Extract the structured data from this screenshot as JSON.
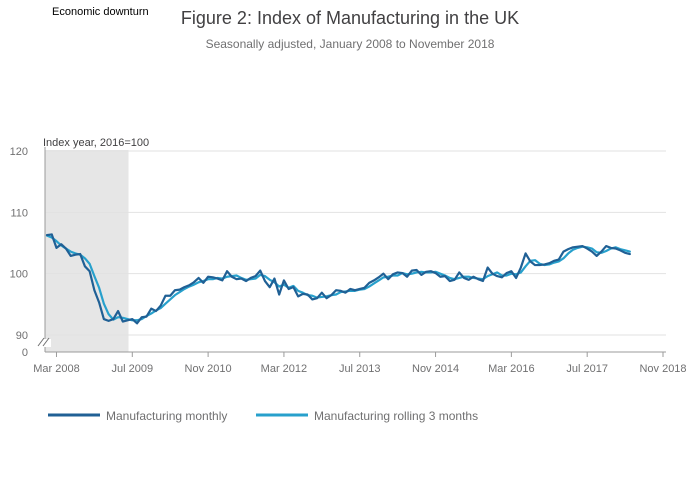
{
  "chart_data": {
    "type": "line",
    "title": "Figure 2: Index of Manufacturing in the UK",
    "subtitle": "Seasonally adjusted, January 2008 to November 2018",
    "ylabel": "Index year, 2016=100",
    "xlabel": "",
    "ylim": [
      90,
      120
    ],
    "y_ticks": [
      90,
      100,
      110,
      120
    ],
    "y_zero_label": "0",
    "x_ticks": [
      {
        "label": "Mar 2008",
        "index": 2
      },
      {
        "label": "Jul 2009",
        "index": 18
      },
      {
        "label": "Nov 2010",
        "index": 34
      },
      {
        "label": "Mar 2012",
        "index": 50
      },
      {
        "label": "Jul 2013",
        "index": 66
      },
      {
        "label": "Nov 2014",
        "index": 82
      },
      {
        "label": "Mar 2016",
        "index": 98
      },
      {
        "label": "Jul 2017",
        "index": 114
      },
      {
        "label": "Nov 2018",
        "index": 130
      }
    ],
    "x_start": "Jan 2008",
    "x_end": "Nov 2018",
    "shaded_region": {
      "label": "Economic downturn",
      "start_index": 0,
      "end_index": 17
    },
    "grid": true,
    "legend_position": "bottom",
    "series": [
      {
        "name": "Manufacturing monthly",
        "color": "#206095",
        "values": [
          106.3,
          106.4,
          104.2,
          104.8,
          104.1,
          102.9,
          103.1,
          103.2,
          101.2,
          100.4,
          97.3,
          95.3,
          92.6,
          92.3,
          92.6,
          93.9,
          92.2,
          92.4,
          92.6,
          91.9,
          92.9,
          93.0,
          94.3,
          93.9,
          94.8,
          96.4,
          96.4,
          97.3,
          97.4,
          97.8,
          98.1,
          98.6,
          99.3,
          98.5,
          99.5,
          99.4,
          99.2,
          98.9,
          100.4,
          99.5,
          99.1,
          99.2,
          98.8,
          99.3,
          99.6,
          100.5,
          98.8,
          97.8,
          99.2,
          96.6,
          98.9,
          97.5,
          97.8,
          96.3,
          96.7,
          96.6,
          95.8,
          96.0,
          96.9,
          96.0,
          96.5,
          97.3,
          97.2,
          96.9,
          97.5,
          97.3,
          97.5,
          97.7,
          98.5,
          98.9,
          99.4,
          100.0,
          99.1,
          99.9,
          100.2,
          100.1,
          99.5,
          100.5,
          100.6,
          99.8,
          100.3,
          100.4,
          100.1,
          99.5,
          99.6,
          98.8,
          99.0,
          100.2,
          99.3,
          99.0,
          99.5,
          99.1,
          98.8,
          101.0,
          100.0,
          99.6,
          99.4,
          100.1,
          100.4,
          99.3,
          101.0,
          103.3,
          102.0,
          101.4,
          101.4,
          101.5,
          101.7,
          102.1,
          102.3,
          103.6,
          104.0,
          104.3,
          104.4,
          104.5,
          104.1,
          103.6,
          102.9,
          103.6,
          104.5,
          104.2,
          104.1,
          103.8,
          103.4,
          103.2
        ],
        "values_end": 103.2
      },
      {
        "name": "Manufacturing rolling 3 months",
        "color": "#27a0cc",
        "values": [
          106.2,
          105.9,
          105.3,
          104.6,
          104.1,
          103.6,
          103.3,
          103.1,
          102.5,
          101.6,
          99.6,
          97.7,
          95.1,
          93.4,
          92.5,
          92.9,
          92.8,
          92.6,
          92.4,
          92.4,
          92.6,
          93.1,
          93.5,
          94.0,
          94.4,
          95.1,
          95.8,
          96.5,
          97.0,
          97.5,
          97.9,
          98.2,
          98.6,
          98.8,
          99.1,
          99.1,
          99.3,
          99.2,
          99.5,
          99.6,
          99.7,
          99.3,
          99.0,
          99.1,
          99.2,
          99.8,
          99.6,
          99.0,
          98.6,
          97.9,
          98.2,
          97.7,
          98.0,
          97.2,
          96.9,
          96.5,
          96.4,
          96.1,
          96.2,
          96.3,
          96.5,
          96.6,
          97.0,
          97.1,
          97.2,
          97.2,
          97.4,
          97.5,
          97.9,
          98.4,
          98.9,
          99.4,
          99.5,
          99.7,
          99.7,
          100.1,
          99.9,
          100.0,
          100.2,
          100.3,
          100.2,
          100.2,
          100.3,
          100.0,
          99.7,
          99.3,
          99.1,
          99.3,
          99.5,
          99.5,
          99.3,
          99.2,
          99.1,
          99.6,
          99.9,
          100.2,
          99.7,
          99.7,
          100.0,
          99.9,
          100.2,
          101.2,
          102.1,
          102.2,
          101.6,
          101.4,
          101.5,
          101.8,
          102.0,
          102.5,
          103.3,
          103.9,
          104.2,
          104.4,
          104.3,
          104.1,
          103.5,
          103.4,
          103.7,
          104.1,
          104.3,
          104.0,
          103.8,
          103.6
        ]
      }
    ]
  }
}
